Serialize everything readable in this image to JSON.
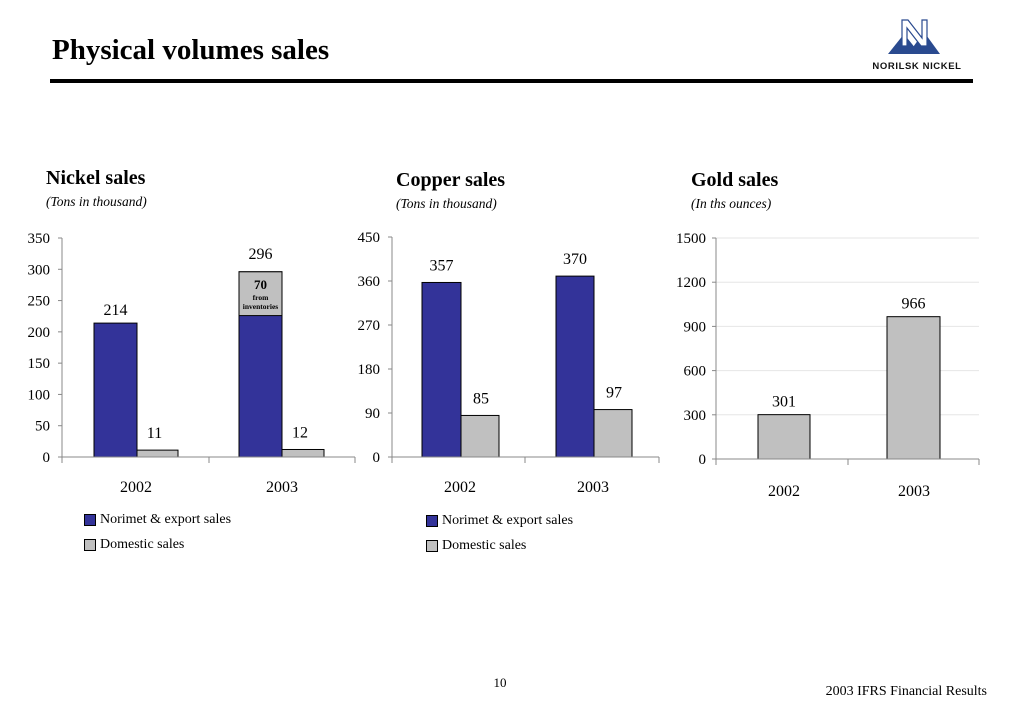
{
  "page": {
    "title": "Physical volumes sales",
    "page_number": "10",
    "footer": "2003 IFRS Financial Results"
  },
  "logo": {
    "text": "NORILSK  NICKEL",
    "mark": "norilsk-nickel-logo",
    "color": "#2a4a8f"
  },
  "colors": {
    "norimet": "#333399",
    "domestic": "#c0c0c0",
    "inventory": "#c0c0c0"
  },
  "legend": {
    "norimet_label": "Norimet & export sales",
    "domestic_label": "Domestic sales"
  },
  "chart_data": [
    {
      "type": "bar",
      "title": "Nickel sales",
      "subtitle": "(Tons in thousand)",
      "categories": [
        "2002",
        "2003"
      ],
      "series": [
        {
          "name": "Norimet & export sales",
          "values": [
            214,
            296
          ]
        },
        {
          "name": "Domestic sales",
          "values": [
            11,
            12
          ]
        }
      ],
      "ylim": [
        0,
        350
      ],
      "yticks": [
        0,
        50,
        100,
        150,
        200,
        250,
        300,
        350
      ],
      "annotation": {
        "category": "2003",
        "value": 70,
        "label": "70",
        "sublabel": "from inventories"
      },
      "grid": false,
      "legend": "bottom-left"
    },
    {
      "type": "bar",
      "title": "Copper sales",
      "subtitle": "(Tons in thousand)",
      "categories": [
        "2002",
        "2003"
      ],
      "series": [
        {
          "name": "Norimet & export sales",
          "values": [
            357,
            370
          ]
        },
        {
          "name": "Domestic sales",
          "values": [
            85,
            97
          ]
        }
      ],
      "ylim": [
        0,
        450
      ],
      "yticks": [
        0,
        90,
        180,
        270,
        360,
        450
      ],
      "grid": false,
      "legend": "bottom-left"
    },
    {
      "type": "bar",
      "title": "Gold sales",
      "subtitle": "(In ths ounces)",
      "categories": [
        "2002",
        "2003"
      ],
      "series": [
        {
          "name": "Domestic sales",
          "values": [
            301,
            966
          ]
        }
      ],
      "ylim": [
        0,
        1500
      ],
      "yticks": [
        0,
        300,
        600,
        900,
        1200,
        1500
      ],
      "grid": true,
      "legend": "none"
    }
  ]
}
